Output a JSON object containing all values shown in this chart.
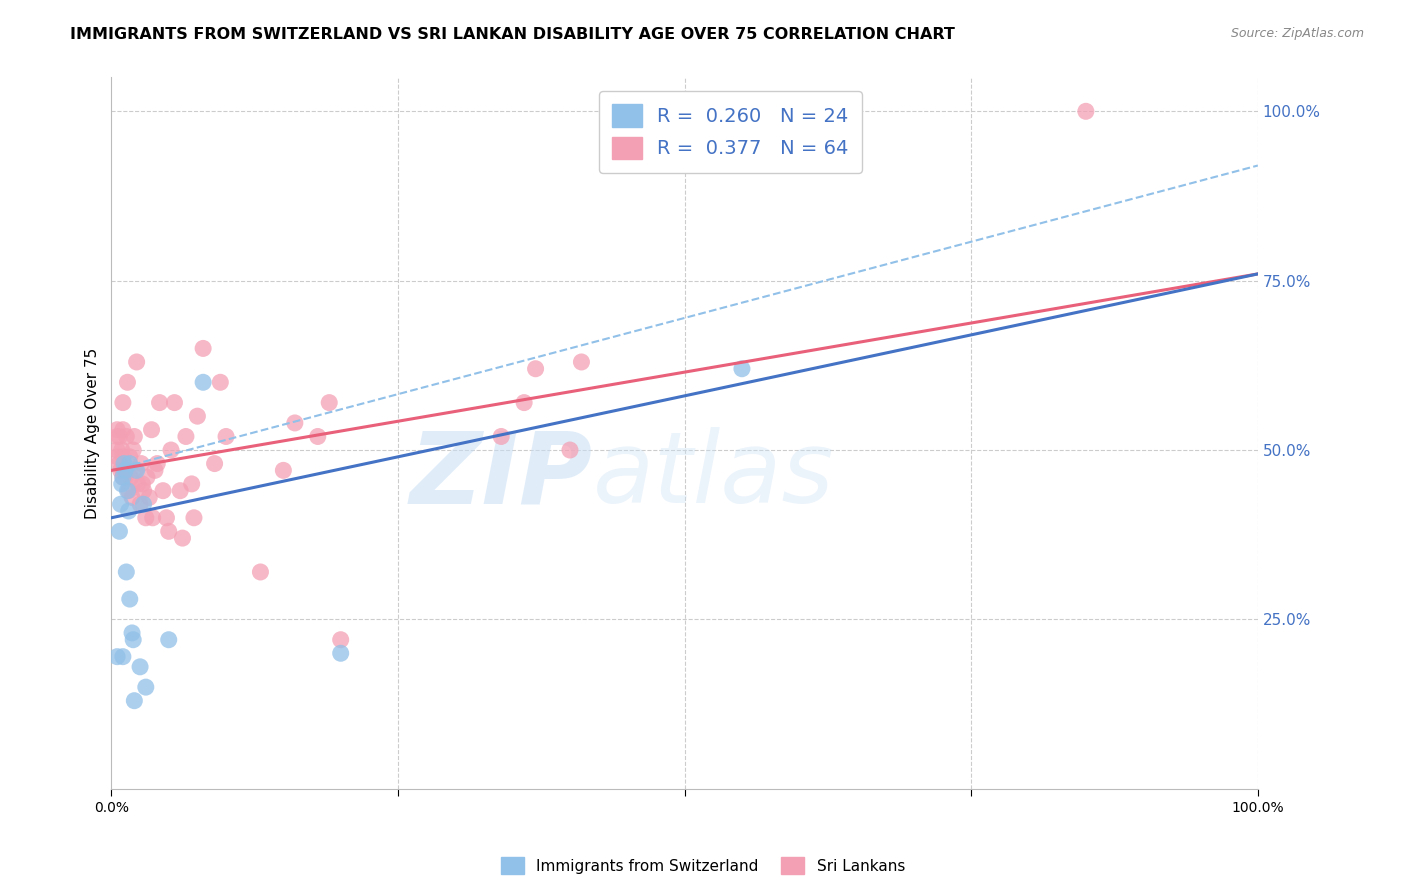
{
  "title": "IMMIGRANTS FROM SWITZERLAND VS SRI LANKAN DISABILITY AGE OVER 75 CORRELATION CHART",
  "source": "Source: ZipAtlas.com",
  "ylabel": "Disability Age Over 75",
  "xlim": [
    0.0,
    1.0
  ],
  "ylim": [
    0.0,
    1.05
  ],
  "y_ticks_right": [
    0.25,
    0.5,
    0.75,
    1.0
  ],
  "y_tick_labels_right": [
    "25.0%",
    "50.0%",
    "75.0%",
    "100.0%"
  ],
  "grid_color": "#cccccc",
  "blue_color": "#91C0E8",
  "pink_color": "#F4A0B4",
  "blue_line_color": "#4472C4",
  "pink_line_color": "#E8607A",
  "dashed_line_color": "#91C0E8",
  "R_blue": 0.26,
  "N_blue": 24,
  "R_pink": 0.377,
  "N_pink": 64,
  "legend_label_blue": "Immigrants from Switzerland",
  "legend_label_pink": "Sri Lankans",
  "watermark_zip": "ZIP",
  "watermark_atlas": "atlas",
  "pink_line_x0": 0.0,
  "pink_line_y0": 0.47,
  "pink_line_x1": 1.0,
  "pink_line_y1": 0.76,
  "blue_line_x0": 0.0,
  "blue_line_y0": 0.4,
  "blue_line_x1": 1.0,
  "blue_line_y1": 0.76,
  "dashed_line_x0": 0.0,
  "dashed_line_y0": 0.47,
  "dashed_line_x1": 1.0,
  "dashed_line_y1": 0.92,
  "blue_x": [
    0.005,
    0.007,
    0.008,
    0.009,
    0.01,
    0.01,
    0.011,
    0.012,
    0.013,
    0.014,
    0.015,
    0.016,
    0.016,
    0.018,
    0.019,
    0.02,
    0.022,
    0.025,
    0.028,
    0.03,
    0.05,
    0.08,
    0.2,
    0.55
  ],
  "blue_y": [
    0.195,
    0.38,
    0.42,
    0.45,
    0.195,
    0.46,
    0.48,
    0.47,
    0.32,
    0.44,
    0.41,
    0.28,
    0.48,
    0.23,
    0.22,
    0.13,
    0.47,
    0.18,
    0.42,
    0.15,
    0.22,
    0.6,
    0.2,
    0.62
  ],
  "pink_x": [
    0.005,
    0.005,
    0.005,
    0.005,
    0.007,
    0.007,
    0.008,
    0.009,
    0.01,
    0.01,
    0.01,
    0.01,
    0.01,
    0.012,
    0.013,
    0.014,
    0.015,
    0.016,
    0.017,
    0.018,
    0.019,
    0.02,
    0.021,
    0.022,
    0.023,
    0.025,
    0.026,
    0.027,
    0.028,
    0.03,
    0.031,
    0.033,
    0.035,
    0.036,
    0.038,
    0.04,
    0.042,
    0.045,
    0.048,
    0.05,
    0.052,
    0.055,
    0.06,
    0.062,
    0.065,
    0.07,
    0.072,
    0.075,
    0.08,
    0.09,
    0.095,
    0.1,
    0.13,
    0.15,
    0.16,
    0.18,
    0.19,
    0.2,
    0.34,
    0.36,
    0.37,
    0.4,
    0.41,
    0.85
  ],
  "pink_y": [
    0.49,
    0.5,
    0.52,
    0.53,
    0.48,
    0.52,
    0.47,
    0.5,
    0.46,
    0.47,
    0.49,
    0.53,
    0.57,
    0.46,
    0.52,
    0.6,
    0.44,
    0.49,
    0.46,
    0.43,
    0.5,
    0.52,
    0.47,
    0.63,
    0.45,
    0.42,
    0.48,
    0.45,
    0.44,
    0.4,
    0.46,
    0.43,
    0.53,
    0.4,
    0.47,
    0.48,
    0.57,
    0.44,
    0.4,
    0.38,
    0.5,
    0.57,
    0.44,
    0.37,
    0.52,
    0.45,
    0.4,
    0.55,
    0.65,
    0.48,
    0.6,
    0.52,
    0.32,
    0.47,
    0.54,
    0.52,
    0.57,
    0.22,
    0.52,
    0.57,
    0.62,
    0.5,
    0.63,
    1.0
  ]
}
